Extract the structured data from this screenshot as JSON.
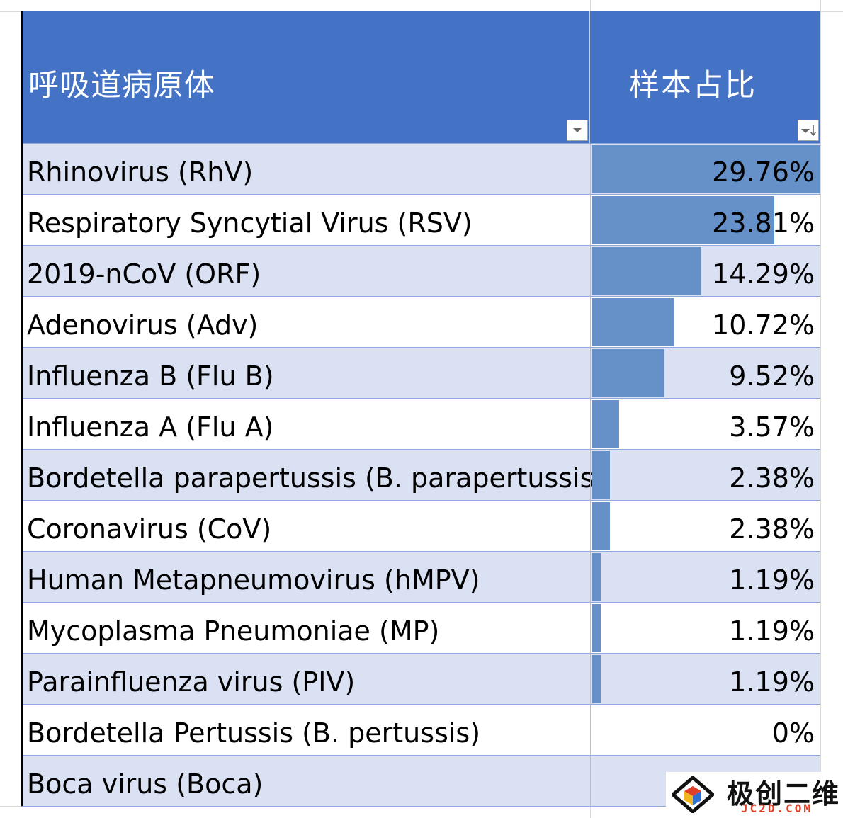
{
  "table": {
    "headers": {
      "pathogen": "呼吸道病原体",
      "share": "样本占比"
    },
    "filter_icons": {
      "pathogen": "filter-dropdown-icon",
      "share": "sort-descending-filter-icon"
    },
    "rows": [
      {
        "name": "Rhinovirus (RhV)",
        "value": "29.76%",
        "pct": 29.76
      },
      {
        "name": "Respiratory Syncytial Virus (RSV)",
        "value": "23.81%",
        "pct": 23.81
      },
      {
        "name": "2019-nCoV (ORF)",
        "value": "14.29%",
        "pct": 14.29
      },
      {
        "name": "Adenovirus (Adv)",
        "value": "10.72%",
        "pct": 10.72
      },
      {
        "name": "Influenza B (Flu B)",
        "value": "9.52%",
        "pct": 9.52
      },
      {
        "name": "Influenza A (Flu A)",
        "value": "3.57%",
        "pct": 3.57
      },
      {
        "name": "Bordetella parapertussis (B. parapertussis)",
        "value": "2.38%",
        "pct": 2.38
      },
      {
        "name": "Coronavirus (CoV)",
        "value": "2.38%",
        "pct": 2.38
      },
      {
        "name": "Human Metapneumovirus (hMPV)",
        "value": "1.19%",
        "pct": 1.19
      },
      {
        "name": "Mycoplasma Pneumoniae (MP)",
        "value": "1.19%",
        "pct": 1.19
      },
      {
        "name": "Parainfluenza virus (PIV)",
        "value": "1.19%",
        "pct": 1.19
      },
      {
        "name": "Bordetella Pertussis (B. pertussis)",
        "value": "0%",
        "pct": 0
      },
      {
        "name": "Boca virus (Boca)",
        "value": "",
        "pct": 0
      }
    ],
    "colors": {
      "header_bg": "#4472c4",
      "band_bg": "#d9e1f2",
      "databar": "#6590c8"
    }
  },
  "watermark": {
    "title": "极创二维",
    "subtitle": "JC2D.COM"
  }
}
